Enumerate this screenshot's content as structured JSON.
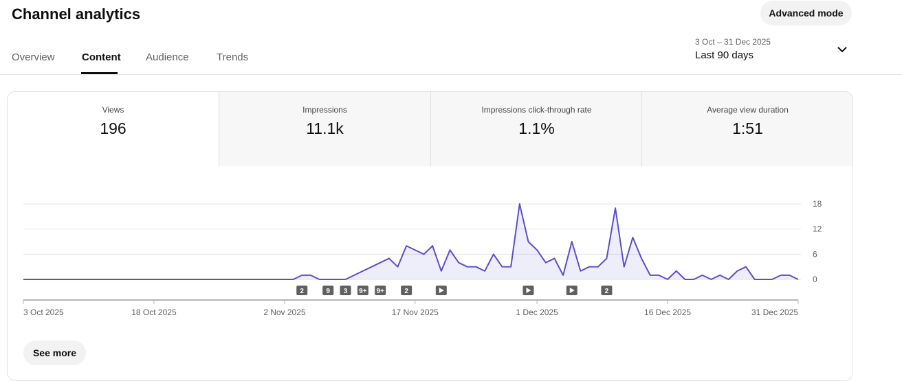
{
  "header": {
    "title": "Channel analytics",
    "advanced_button": "Advanced mode"
  },
  "tabs": [
    "Overview",
    "Content",
    "Audience",
    "Trends"
  ],
  "date_range": {
    "dates": "3 Oct – 31 Dec 2025",
    "label": "Last 90 days"
  },
  "metrics": [
    {
      "name": "Views",
      "value": "196"
    },
    {
      "name": "Impressions",
      "value": "11.1k"
    },
    {
      "name": "Impressions click-through rate",
      "value": "1.1%"
    },
    {
      "name": "Average view duration",
      "value": "1:51"
    }
  ],
  "chart_data": {
    "type": "line",
    "color": "#5c4ccc",
    "categories": [
      "3 Oct 2025",
      null,
      null,
      null,
      null,
      null,
      null,
      null,
      null,
      null,
      null,
      null,
      null,
      null,
      null,
      "18 Oct 2025",
      null,
      null,
      null,
      null,
      null,
      null,
      null,
      null,
      null,
      null,
      null,
      null,
      null,
      null,
      "2 Nov 2025",
      null,
      null,
      null,
      null,
      null,
      null,
      null,
      null,
      null,
      null,
      null,
      null,
      null,
      null,
      "17 Nov 2025",
      null,
      null,
      null,
      null,
      null,
      null,
      null,
      null,
      null,
      null,
      null,
      null,
      null,
      "1 Dec 2025",
      null,
      null,
      null,
      null,
      null,
      null,
      null,
      null,
      null,
      null,
      null,
      null,
      null,
      null,
      "16 Dec 2025",
      null,
      null,
      null,
      null,
      null,
      null,
      null,
      null,
      null,
      null,
      null,
      null,
      null,
      null,
      "31 Dec 2025"
    ],
    "values": [
      0,
      0,
      0,
      0,
      0,
      0,
      0,
      0,
      0,
      0,
      0,
      0,
      0,
      0,
      0,
      0,
      0,
      0,
      0,
      0,
      0,
      0,
      0,
      0,
      0,
      0,
      0,
      0,
      0,
      0,
      0,
      0,
      1,
      1,
      0,
      0,
      0,
      0,
      1,
      2,
      3,
      4,
      5,
      3,
      8,
      7,
      6,
      8,
      2,
      7,
      4,
      3,
      3,
      2,
      6,
      3,
      3,
      18,
      9,
      7,
      4,
      5,
      1,
      9,
      2,
      3,
      3,
      5,
      17,
      3,
      10,
      5,
      1,
      1,
      0,
      2,
      0,
      0,
      1,
      0,
      1,
      0,
      2,
      3,
      0,
      0,
      0,
      1,
      1,
      0
    ],
    "ylim": [
      0,
      18
    ],
    "yticks": [
      0,
      6,
      12,
      18
    ],
    "grid": true,
    "markers": [
      "2",
      "9",
      "3",
      "9+",
      "9+",
      "2",
      "2"
    ]
  },
  "see_more": "See more"
}
